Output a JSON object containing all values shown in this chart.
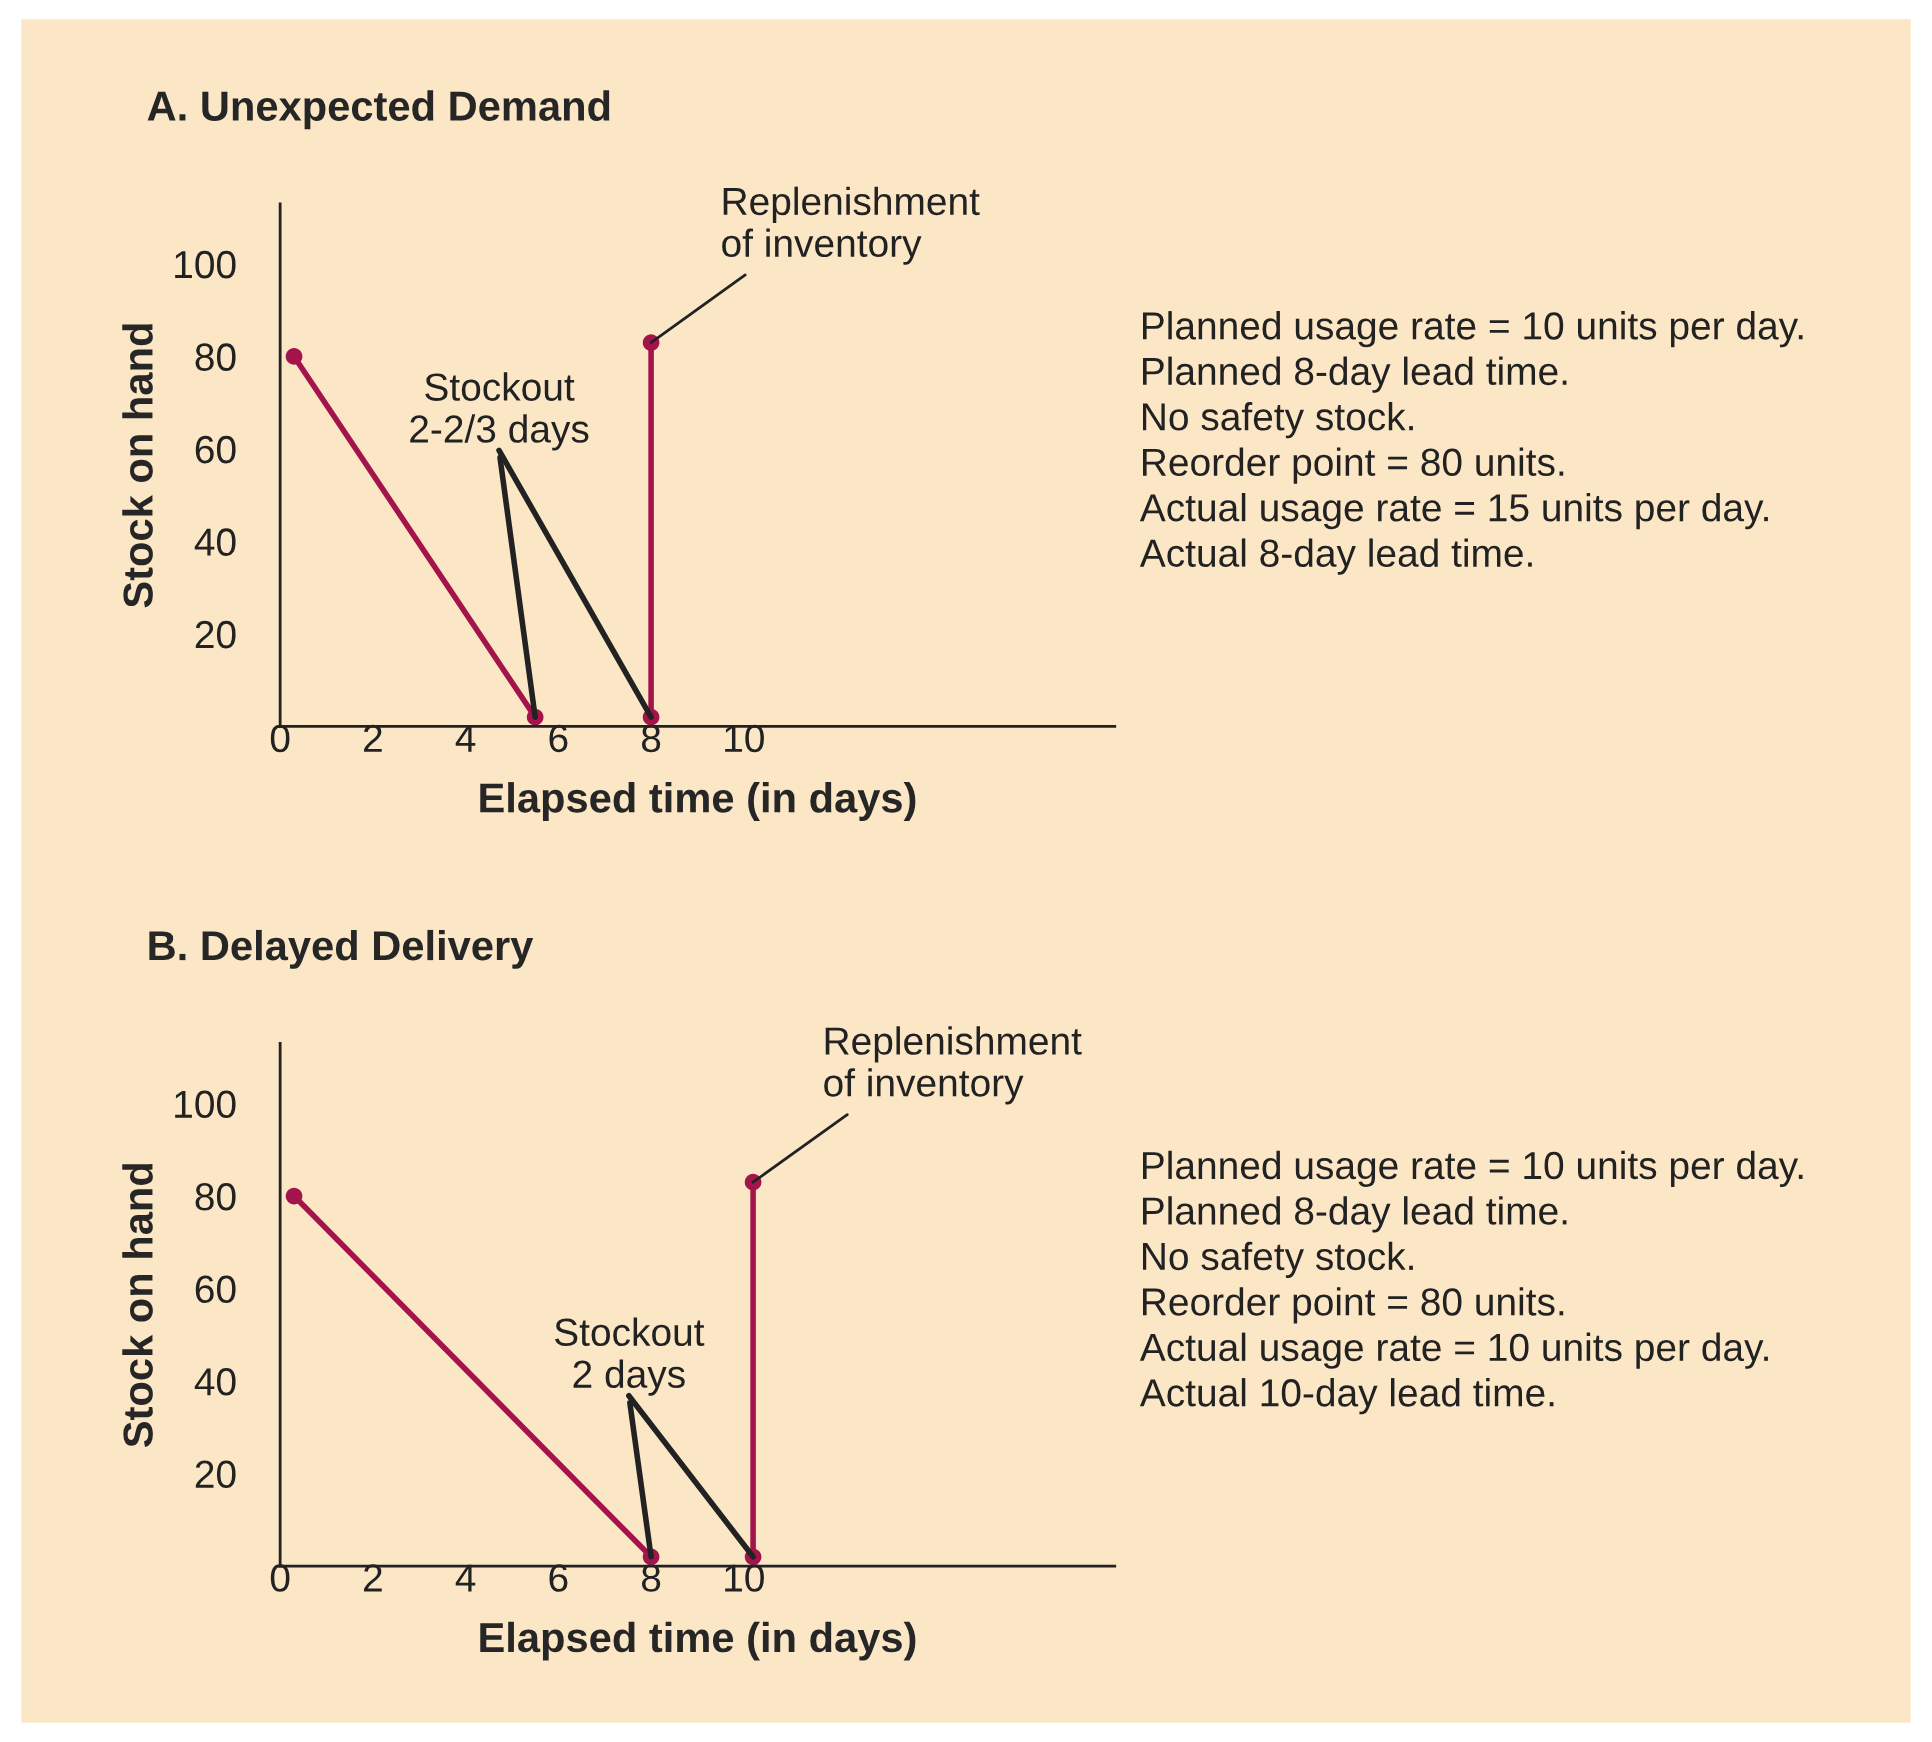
{
  "chart_data": [
    {
      "type": "line",
      "title": "A. Unexpected Demand",
      "xlabel": "Elapsed time (in days)",
      "ylabel": "Stock on hand",
      "series": [
        {
          "color": "#a3154a",
          "x": [
            0.3,
            5.5
          ],
          "values": [
            80,
            2
          ]
        },
        {
          "color": "#a3154a",
          "x": [
            8,
            8
          ],
          "values": [
            2,
            83
          ]
        }
      ],
      "xlim": [
        0,
        18
      ],
      "ylim": [
        0,
        113
      ],
      "xticks": [
        0,
        2,
        4,
        6,
        8,
        10
      ],
      "yticks": [
        20,
        40,
        60,
        80,
        100
      ],
      "marker": "circle",
      "line_style": "solid",
      "grid": false,
      "legend": false,
      "annotations": [
        {
          "text": "Stockout\n2-2/3 days",
          "x": 5.5,
          "y": 2
        },
        {
          "text": "Replenishment\nof inventory",
          "x": 8,
          "y": 83
        },
        "Planned usage rate = 10 units per day.",
        "Planned 8-day lead time.",
        "No safety stock.",
        "Reorder point = 80 units.",
        "Actual usage rate = 15 units per day.",
        "Actual 8-day lead time."
      ]
    },
    {
      "type": "line",
      "title": "B. Delayed Delivery",
      "xlabel": "Elapsed time (in days)",
      "ylabel": "Stock on hand",
      "series": [
        {
          "color": "#a3154a",
          "x": [
            0.3,
            8
          ],
          "values": [
            80,
            2
          ]
        },
        {
          "color": "#a3154a",
          "x": [
            10.2,
            10.2
          ],
          "values": [
            2,
            83
          ]
        }
      ],
      "xlim": [
        0,
        18
      ],
      "ylim": [
        0,
        113
      ],
      "xticks": [
        0,
        2,
        4,
        6,
        8,
        10
      ],
      "yticks": [
        20,
        40,
        60,
        80,
        100
      ],
      "marker": "circle",
      "line_style": "solid",
      "grid": false,
      "legend": false,
      "annotations": [
        {
          "text": "Stockout\n2 days",
          "x": 8,
          "y": 2
        },
        {
          "text": "Replenishment\nof inventory",
          "x": 10.2,
          "y": 83
        },
        "Planned usage rate = 10 units per day.",
        "Planned 8-day lead time.",
        "No safety stock.",
        "Reorder point = 80 units.",
        "Actual usage rate = 10 units per day.",
        "Actual 10-day lead time."
      ]
    }
  ]
}
